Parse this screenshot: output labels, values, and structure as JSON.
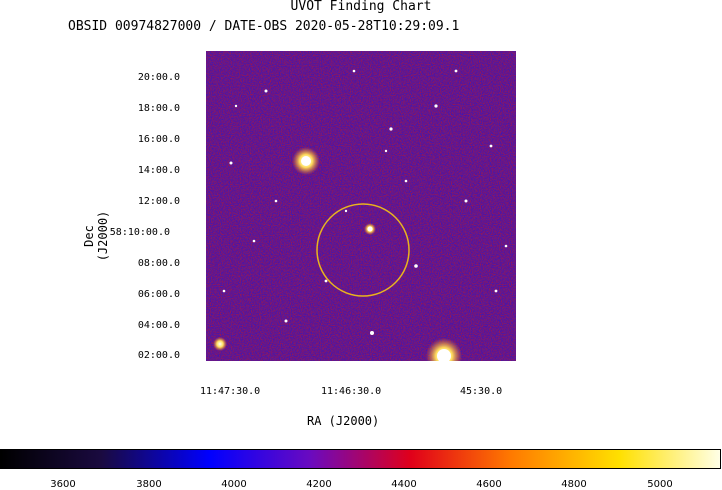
{
  "title": "UVOT Finding Chart",
  "subtitle": "OBSID 00974827000 / DATE-OBS 2020-05-28T10:29:09.1",
  "y_axis": {
    "label": "Dec  (J2000)",
    "ticks": [
      "20:00.0",
      "18:00.0",
      "16:00.0",
      "14:00.0",
      "12:00.0",
      "58:10:00.0",
      "08:00.0",
      "06:00.0",
      "04:00.0",
      "02:00.0"
    ]
  },
  "x_axis": {
    "label": "RA  (J2000)",
    "ticks": [
      "11:47:30.0",
      "11:46:30.0",
      "45:30.0"
    ]
  },
  "colorbar": {
    "ticks": [
      "3600",
      "3800",
      "4000",
      "4200",
      "4400",
      "4600",
      "4800",
      "5000"
    ],
    "colors": [
      "#000000",
      "#1a0a40",
      "#0000ff",
      "#6a0ac0",
      "#e0001a",
      "#ff7a00",
      "#ffe000",
      "#ffffe6"
    ]
  },
  "overlay": {
    "circle_color": "#e8b420"
  }
}
